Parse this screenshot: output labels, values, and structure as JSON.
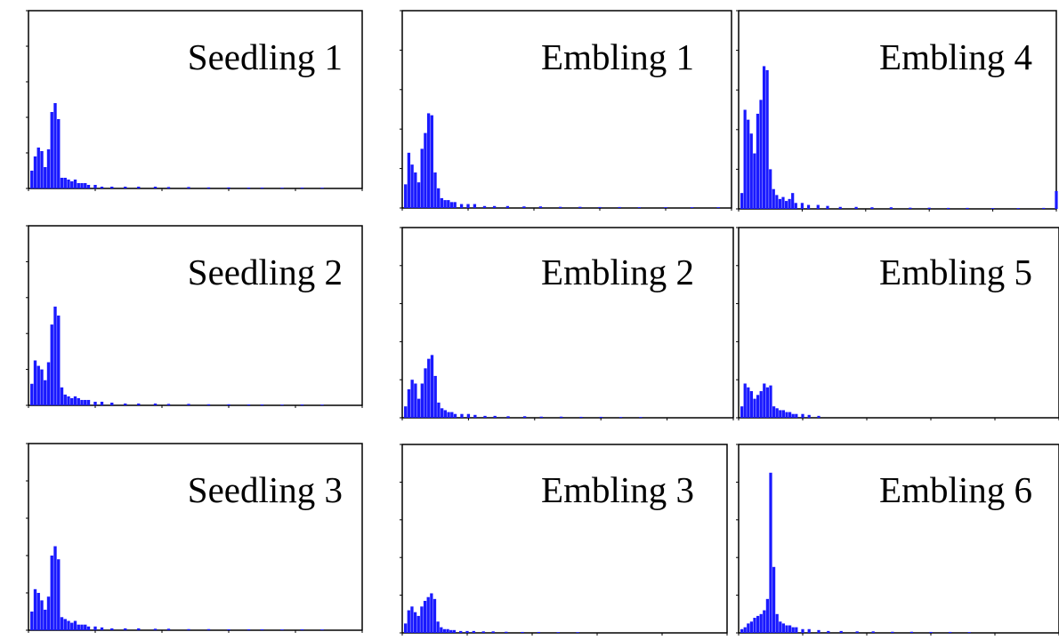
{
  "figure": {
    "background": "#ffffff",
    "bar_color": "#1a1aff"
  },
  "chart_data": [
    {
      "type": "bar",
      "title": "Seedling 1",
      "xlim": [
        0,
        1000
      ],
      "ylim": [
        0,
        100
      ],
      "xlabel": "",
      "ylabel": "",
      "grid": false,
      "x": [
        10,
        20,
        30,
        40,
        50,
        60,
        70,
        80,
        90,
        100,
        110,
        120,
        130,
        140,
        150,
        160,
        170,
        180,
        200,
        220,
        250,
        290,
        330,
        380,
        420,
        480,
        540,
        600,
        660,
        700,
        760,
        820,
        880
      ],
      "values": [
        10,
        18,
        23,
        21,
        12,
        22,
        43,
        48,
        39,
        6,
        6,
        5,
        4,
        5,
        3,
        3,
        3,
        2,
        2,
        1,
        1,
        1,
        1,
        1,
        0.8,
        0.8,
        0.6,
        0.6,
        0.5,
        0.5,
        0.4,
        0.5,
        0.4
      ]
    },
    {
      "type": "bar",
      "title": "Embling 1",
      "xlim": [
        0,
        1000
      ],
      "ylim": [
        0,
        100
      ],
      "xlabel": "",
      "ylabel": "",
      "grid": false,
      "x": [
        10,
        20,
        30,
        40,
        50,
        60,
        70,
        80,
        90,
        100,
        110,
        120,
        130,
        140,
        150,
        160,
        180,
        200,
        220,
        250,
        280,
        320,
        370,
        420,
        480,
        540,
        600,
        660,
        720,
        800,
        880,
        960
      ],
      "values": [
        12,
        28,
        22,
        18,
        13,
        30,
        38,
        48,
        47,
        18,
        10,
        5,
        4,
        4,
        3,
        3,
        2,
        2,
        2,
        1,
        1,
        1,
        0.8,
        0.8,
        0.6,
        0.6,
        0.5,
        0.5,
        0.4,
        0.4,
        0.4,
        0.4
      ]
    },
    {
      "type": "bar",
      "title": "Embling 4",
      "xlim": [
        0,
        1000
      ],
      "ylim": [
        0,
        100
      ],
      "xlabel": "",
      "ylabel": "",
      "grid": false,
      "x": [
        10,
        20,
        30,
        40,
        50,
        60,
        70,
        80,
        90,
        100,
        110,
        120,
        130,
        140,
        150,
        160,
        170,
        180,
        200,
        220,
        250,
        280,
        320,
        370,
        420,
        480,
        540,
        600,
        660,
        720,
        800,
        880,
        960,
        1000
      ],
      "values": [
        8,
        50,
        45,
        38,
        28,
        48,
        55,
        72,
        70,
        20,
        10,
        7,
        5,
        6,
        4,
        5,
        8,
        3,
        3,
        2,
        2,
        1.5,
        1,
        1,
        0.8,
        0.8,
        0.6,
        0.6,
        0.5,
        0.5,
        0.4,
        0.4,
        0.5,
        9
      ]
    },
    {
      "type": "bar",
      "title": "Seedling 2",
      "xlim": [
        0,
        1000
      ],
      "ylim": [
        0,
        100
      ],
      "xlabel": "",
      "ylabel": "",
      "grid": false,
      "x": [
        10,
        20,
        30,
        40,
        50,
        60,
        70,
        80,
        90,
        100,
        110,
        120,
        130,
        140,
        150,
        160,
        170,
        180,
        200,
        220,
        250,
        290,
        330,
        380,
        420,
        480,
        540,
        600,
        660,
        700,
        760,
        820,
        880
      ],
      "values": [
        12,
        25,
        22,
        20,
        14,
        24,
        45,
        55,
        50,
        10,
        6,
        5,
        4,
        5,
        4,
        3,
        3,
        3,
        2,
        2,
        1.5,
        1,
        1,
        1,
        0.8,
        0.8,
        0.6,
        0.6,
        0.5,
        0.5,
        0.4,
        0.5,
        0.4
      ]
    },
    {
      "type": "bar",
      "title": "Embling 2",
      "xlim": [
        0,
        1000
      ],
      "ylim": [
        0,
        100
      ],
      "xlabel": "",
      "ylabel": "",
      "grid": false,
      "x": [
        10,
        20,
        30,
        40,
        50,
        60,
        70,
        80,
        90,
        100,
        110,
        120,
        130,
        140,
        150,
        160,
        180,
        200,
        220,
        250,
        280,
        320,
        370,
        420,
        480,
        540,
        600,
        660,
        720
      ],
      "values": [
        6,
        15,
        20,
        18,
        10,
        18,
        26,
        31,
        33,
        22,
        8,
        5,
        4,
        3,
        3,
        2,
        2,
        2,
        1.5,
        1,
        1,
        0.8,
        0.8,
        0.6,
        0.6,
        0.5,
        0.5,
        0.4,
        0.4
      ]
    },
    {
      "type": "bar",
      "title": "Embling 5",
      "xlim": [
        0,
        1000
      ],
      "ylim": [
        0,
        100
      ],
      "xlabel": "",
      "ylabel": "",
      "grid": false,
      "x": [
        10,
        20,
        30,
        40,
        50,
        60,
        70,
        80,
        90,
        100,
        110,
        120,
        130,
        140,
        150,
        160,
        170,
        180,
        200,
        220,
        250
      ],
      "values": [
        6,
        18,
        16,
        14,
        10,
        12,
        14,
        18,
        16,
        17,
        6,
        5,
        4,
        4,
        3,
        3,
        2,
        2,
        2,
        1.5,
        1
      ]
    },
    {
      "type": "bar",
      "title": "Seedling 3",
      "xlim": [
        0,
        1000
      ],
      "ylim": [
        0,
        100
      ],
      "xlabel": "",
      "ylabel": "",
      "grid": false,
      "x": [
        10,
        20,
        30,
        40,
        50,
        60,
        70,
        80,
        90,
        100,
        110,
        120,
        130,
        140,
        150,
        160,
        170,
        180,
        200,
        220,
        250,
        290,
        330,
        380,
        420,
        480,
        540,
        600,
        660,
        700,
        760,
        820,
        880
      ],
      "values": [
        10,
        22,
        20,
        16,
        11,
        18,
        40,
        45,
        38,
        7,
        6,
        5,
        4,
        5,
        3,
        3,
        3,
        2,
        2,
        1.5,
        1,
        1,
        1,
        0.8,
        0.8,
        0.6,
        0.6,
        0.5,
        0.5,
        0.5,
        0.4,
        0.5,
        0.4
      ]
    },
    {
      "type": "bar",
      "title": "Embling 3",
      "xlim": [
        0,
        1000
      ],
      "ylim": [
        0,
        100
      ],
      "xlabel": "",
      "ylabel": "",
      "grid": false,
      "x": [
        10,
        20,
        30,
        40,
        50,
        60,
        70,
        80,
        90,
        100,
        110,
        120,
        130,
        140,
        150,
        160,
        180,
        200,
        220,
        250,
        280,
        320,
        370,
        420,
        480,
        540
      ],
      "values": [
        5,
        12,
        14,
        11,
        9,
        14,
        17,
        19,
        21,
        18,
        6,
        3,
        2,
        2,
        1.5,
        1.5,
        1,
        1,
        1,
        0.8,
        0.8,
        0.6,
        0.5,
        0.5,
        0.4,
        0.4
      ]
    },
    {
      "type": "bar",
      "title": "Embling 6",
      "xlim": [
        0,
        1000
      ],
      "ylim": [
        0,
        100
      ],
      "xlabel": "",
      "ylabel": "",
      "grid": false,
      "x": [
        10,
        20,
        30,
        40,
        50,
        60,
        70,
        80,
        90,
        100,
        110,
        120,
        130,
        140,
        150,
        160,
        170,
        180,
        200,
        220,
        250,
        280,
        320,
        370,
        420,
        480,
        540,
        600,
        660,
        720
      ],
      "values": [
        2,
        3,
        5,
        6,
        8,
        9,
        10,
        12,
        18,
        85,
        35,
        10,
        6,
        5,
        4,
        4,
        3,
        3,
        2,
        2,
        1.5,
        1,
        1,
        0.8,
        0.8,
        0.6,
        0.6,
        0.5,
        0.5,
        0.4
      ]
    }
  ]
}
